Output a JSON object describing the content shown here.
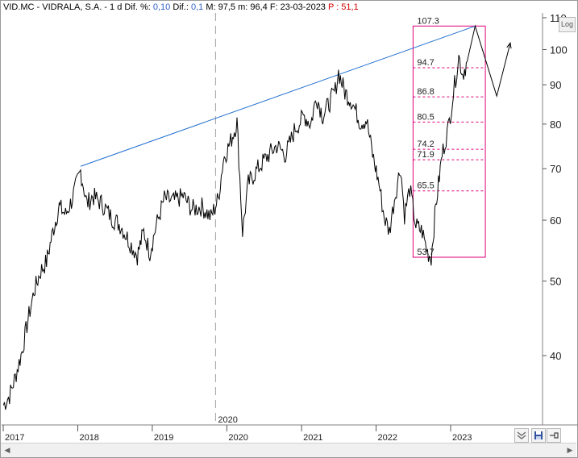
{
  "header": {
    "symbol": "VID.MC - VIDRALA, S.A. -",
    "period": "1 d",
    "dif_pct_label": "Dif. %:",
    "dif_pct_value": "0,10",
    "dif_label": "Dif.:",
    "dif_value": "0,1",
    "m_label": "M: 97,5",
    "m2_label": "m: 96,4",
    "date_label": "F: 23-03-2023",
    "p_label": "P : 51,1"
  },
  "toolbar": {
    "log_label": "Log",
    "collapse_icon": "double-chevron-down-icon",
    "save_icon": "save-icon",
    "pin_icon": "pin-icon",
    "scroll_left_icon": "arrow-left-icon",
    "scroll_right_icon": "arrow-right-icon"
  },
  "colors": {
    "price": "#000000",
    "trendline": "#1f6fd0",
    "fibonacci": "#e0007a",
    "header_value": "#3060c8",
    "header_red": "#d00000"
  },
  "chart_data": {
    "type": "line",
    "scale": "log",
    "ylim": [
      33,
      112
    ],
    "y_ticks": [
      40,
      50,
      60,
      70,
      80,
      90,
      100,
      110
    ],
    "x_tick_labels": [
      "2017",
      "2018",
      "2019",
      "2020",
      "2021",
      "2022",
      "2023"
    ],
    "x_marker_label": "2020",
    "series": [
      {
        "values": [
          {
            "x": "2017-01-02",
            "y": 34.5
          },
          {
            "x": "2017-02-01",
            "y": 35.5
          },
          {
            "x": "2017-03-01",
            "y": 37.5
          },
          {
            "x": "2017-04-03",
            "y": 40.5
          },
          {
            "x": "2017-05-02",
            "y": 44.5
          },
          {
            "x": "2017-06-01",
            "y": 48.5
          },
          {
            "x": "2017-07-03",
            "y": 51.5
          },
          {
            "x": "2017-08-01",
            "y": 53.0
          },
          {
            "x": "2017-09-01",
            "y": 58.0
          },
          {
            "x": "2017-10-02",
            "y": 62.5
          },
          {
            "x": "2017-11-02",
            "y": 61.0
          },
          {
            "x": "2017-12-01",
            "y": 63.5
          },
          {
            "x": "2018-01-15",
            "y": 69.5
          },
          {
            "x": "2018-02-15",
            "y": 63.0
          },
          {
            "x": "2018-03-15",
            "y": 64.5
          },
          {
            "x": "2018-05-01",
            "y": 63.0
          },
          {
            "x": "2018-06-15",
            "y": 60.5
          },
          {
            "x": "2018-08-01",
            "y": 59.0
          },
          {
            "x": "2018-09-15",
            "y": 56.0
          },
          {
            "x": "2018-10-20",
            "y": 54.0
          },
          {
            "x": "2018-11-20",
            "y": 58.0
          },
          {
            "x": "2018-12-20",
            "y": 54.5
          },
          {
            "x": "2019-01-20",
            "y": 59.0
          },
          {
            "x": "2019-03-01",
            "y": 64.0
          },
          {
            "x": "2019-04-15",
            "y": 63.5
          },
          {
            "x": "2019-06-01",
            "y": 64.5
          },
          {
            "x": "2019-07-15",
            "y": 62.0
          },
          {
            "x": "2019-09-01",
            "y": 62.5
          },
          {
            "x": "2019-10-15",
            "y": 60.5
          },
          {
            "x": "2019-11-20",
            "y": 64.0
          },
          {
            "x": "2019-12-15",
            "y": 72.0
          },
          {
            "x": "2020-01-20",
            "y": 76.0
          },
          {
            "x": "2020-02-20",
            "y": 80.5
          },
          {
            "x": "2020-03-18",
            "y": 58.0
          },
          {
            "x": "2020-04-15",
            "y": 67.0
          },
          {
            "x": "2020-06-01",
            "y": 70.0
          },
          {
            "x": "2020-07-15",
            "y": 72.5
          },
          {
            "x": "2020-09-01",
            "y": 75.0
          },
          {
            "x": "2020-10-15",
            "y": 73.0
          },
          {
            "x": "2020-12-01",
            "y": 79.0
          },
          {
            "x": "2021-01-15",
            "y": 82.0
          },
          {
            "x": "2021-02-15",
            "y": 80.0
          },
          {
            "x": "2021-03-15",
            "y": 87.0
          },
          {
            "x": "2021-04-15",
            "y": 82.0
          },
          {
            "x": "2021-05-15",
            "y": 85.0
          },
          {
            "x": "2021-06-15",
            "y": 88.5
          },
          {
            "x": "2021-07-01",
            "y": 93.5
          },
          {
            "x": "2021-08-01",
            "y": 88.0
          },
          {
            "x": "2021-09-01",
            "y": 86.0
          },
          {
            "x": "2021-10-15",
            "y": 80.5
          },
          {
            "x": "2021-11-15",
            "y": 81.0
          },
          {
            "x": "2021-12-15",
            "y": 73.0
          },
          {
            "x": "2022-01-15",
            "y": 67.0
          },
          {
            "x": "2022-02-10",
            "y": 60.5
          },
          {
            "x": "2022-03-07",
            "y": 58.0
          },
          {
            "x": "2022-04-01",
            "y": 64.0
          },
          {
            "x": "2022-05-01",
            "y": 70.5
          },
          {
            "x": "2022-05-20",
            "y": 61.0
          },
          {
            "x": "2022-06-15",
            "y": 66.0
          },
          {
            "x": "2022-07-15",
            "y": 59.0
          },
          {
            "x": "2022-08-15",
            "y": 58.0
          },
          {
            "x": "2022-09-10",
            "y": 54.5
          },
          {
            "x": "2022-09-28",
            "y": 53.7
          },
          {
            "x": "2022-10-20",
            "y": 62.5
          },
          {
            "x": "2022-11-20",
            "y": 73.0
          },
          {
            "x": "2022-12-20",
            "y": 79.0
          },
          {
            "x": "2023-01-15",
            "y": 88.0
          },
          {
            "x": "2023-02-10",
            "y": 98.0
          },
          {
            "x": "2023-03-01",
            "y": 93.0
          },
          {
            "x": "2023-03-23",
            "y": 96.5
          }
        ]
      }
    ],
    "fibonacci": {
      "top": 107.3,
      "bottom": 53.7,
      "levels": [
        107.3,
        94.7,
        86.8,
        80.5,
        74.2,
        71.9,
        65.5,
        53.7
      ]
    },
    "trendline": [
      {
        "x": "2018-01-15",
        "y": 70.5
      },
      {
        "x": "2023-05-01",
        "y": 107.3
      }
    ],
    "projection": [
      {
        "x": "2023-03-23",
        "y": 96.5
      },
      {
        "x": "2023-05-01",
        "y": 107.3
      },
      {
        "x": "2023-08-15",
        "y": 87.0
      },
      {
        "x": "2023-10-20",
        "y": 102.0
      }
    ]
  }
}
